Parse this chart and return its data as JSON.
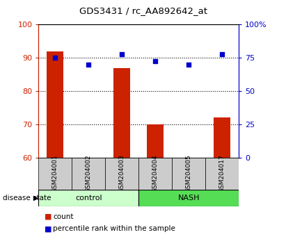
{
  "title": "GDS3431 / rc_AA892642_at",
  "samples": [
    "GSM204001",
    "GSM204002",
    "GSM204003",
    "GSM204004",
    "GSM204005",
    "GSM204017"
  ],
  "bar_values": [
    92,
    60,
    87,
    70,
    60,
    72
  ],
  "scatter_values_left": [
    90,
    88,
    91,
    89,
    88,
    91
  ],
  "left_ylim": [
    60,
    100
  ],
  "right_ylim": [
    0,
    100
  ],
  "left_yticks": [
    60,
    70,
    80,
    90,
    100
  ],
  "right_yticks": [
    0,
    25,
    50,
    75,
    100
  ],
  "right_yticklabels": [
    "0",
    "25",
    "50",
    "75",
    "100%"
  ],
  "bar_color": "#cc2200",
  "scatter_color": "#0000cc",
  "grid_ticks": [
    70,
    80,
    90
  ],
  "label_area_color": "#cccccc",
  "control_color": "#ccffcc",
  "nash_color": "#55dd55",
  "legend_count": "count",
  "legend_percentile": "percentile rank within the sample"
}
